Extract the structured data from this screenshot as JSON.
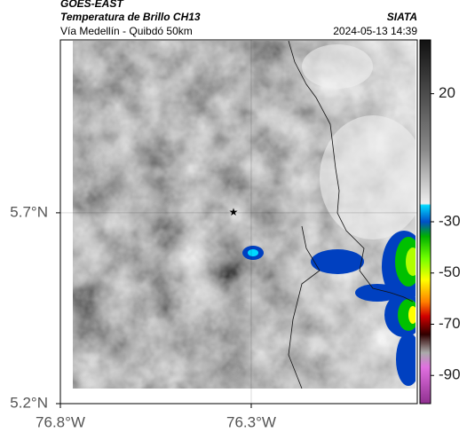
{
  "header": {
    "source": "GOES-EAST",
    "product": "Temperatura de Brillo CH13",
    "region": "Vía Medellín - Quibdó 50km",
    "agency": "SIATA",
    "datetime": "2024-05-13 14:39"
  },
  "map": {
    "xlim": [
      -76.8,
      -75.865
    ],
    "ylim": [
      5.2,
      6.153
    ],
    "xticks": [
      {
        "value": -76.8,
        "label": "76.8°W"
      },
      {
        "value": -76.3,
        "label": "76.3°W"
      }
    ],
    "yticks": [
      {
        "value": 5.7,
        "label": "5.7°N"
      },
      {
        "value": 5.2,
        "label": "5.2°N"
      }
    ],
    "grid": true
  },
  "colorbar": {
    "lim": [
      41,
      -101
    ],
    "ticks": [
      20,
      -30,
      -50,
      -70,
      -90
    ]
  }
}
